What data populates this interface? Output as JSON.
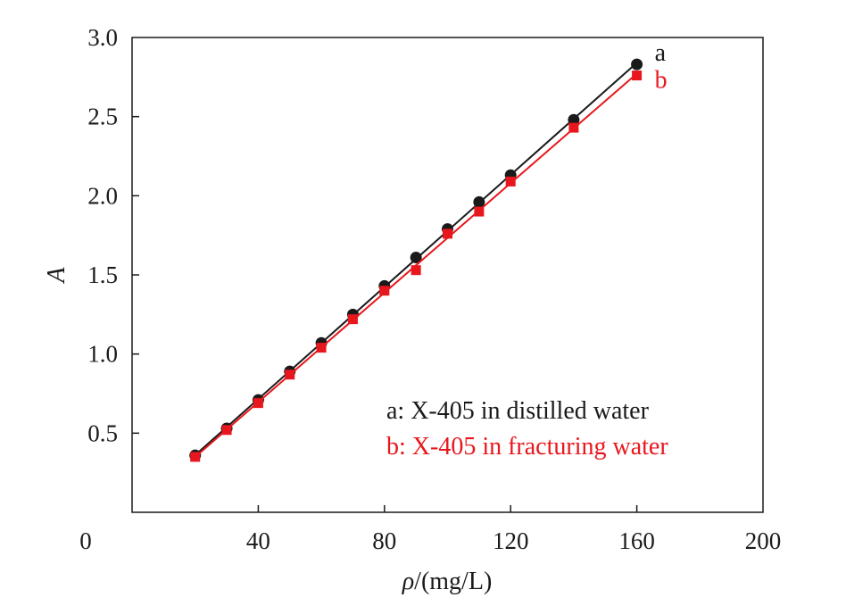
{
  "chart_data": {
    "type": "scatter",
    "title": "",
    "xlabel": "ρ/(mg/L)",
    "ylabel": "A",
    "xlim": [
      0,
      200
    ],
    "ylim": [
      0,
      3.0
    ],
    "x_ticks": [
      0,
      40,
      80,
      120,
      160,
      200
    ],
    "x_tick_labels": [
      "0",
      "40",
      "80",
      "120",
      "160",
      "200"
    ],
    "y_ticks": [
      0.5,
      1.0,
      1.5,
      2.0,
      2.5,
      3.0
    ],
    "y_tick_labels": [
      "0.5",
      "1.0",
      "1.5",
      "2.0",
      "2.5",
      "3.0"
    ],
    "grid": false,
    "legend_placement": "bottom-right",
    "series": [
      {
        "name": "a: X-405 in distilled water",
        "tag": "a",
        "color": "#1a1a1a",
        "marker": "circle",
        "fit_line": true,
        "x": [
          20,
          30,
          40,
          50,
          60,
          70,
          80,
          90,
          100,
          110,
          120,
          140,
          160
        ],
        "y": [
          0.36,
          0.53,
          0.71,
          0.89,
          1.07,
          1.25,
          1.43,
          1.61,
          1.79,
          1.96,
          2.13,
          2.48,
          2.83
        ]
      },
      {
        "name": "b: X-405 in fracturing water",
        "tag": "b",
        "color": "#e8171d",
        "marker": "square",
        "fit_line": true,
        "x": [
          20,
          30,
          40,
          50,
          60,
          70,
          80,
          90,
          100,
          110,
          120,
          140,
          160
        ],
        "y": [
          0.35,
          0.52,
          0.69,
          0.87,
          1.04,
          1.22,
          1.4,
          1.53,
          1.76,
          1.9,
          2.09,
          2.43,
          2.76
        ]
      }
    ]
  }
}
